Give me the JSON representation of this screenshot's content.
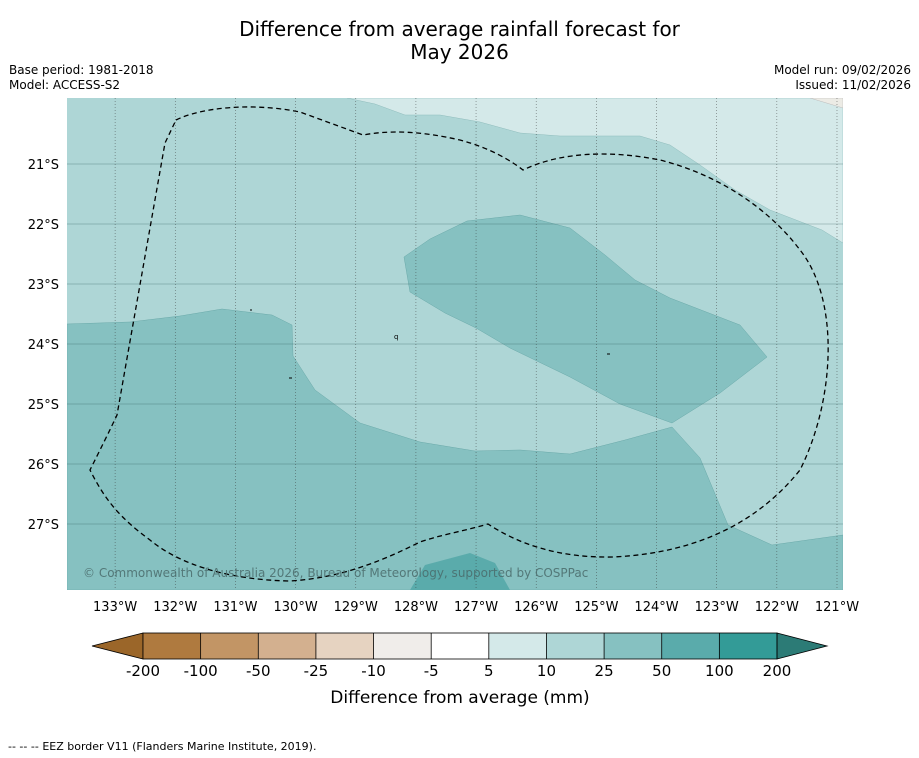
{
  "title": {
    "line1": "Difference from average rainfall forecast for",
    "line2": "May 2026"
  },
  "meta_left": {
    "base_period": "Base period: 1981-2018",
    "model": "Model: ACCESS-S2"
  },
  "meta_right": {
    "model_run": "Model run: 09/02/2026",
    "issued": "Issued: 11/02/2026"
  },
  "map": {
    "lon_ticks": [
      "133°W",
      "132°W",
      "131°W",
      "130°W",
      "129°W",
      "128°W",
      "127°W",
      "126°W",
      "125°W",
      "124°W",
      "123°W",
      "122°W",
      "121°W"
    ],
    "lat_ticks": [
      "21°S",
      "22°S",
      "23°S",
      "24°S",
      "25°S",
      "26°S",
      "27°S"
    ],
    "lon_range": [
      -133.8,
      -120.9
    ],
    "lat_range": [
      -28.1,
      -19.9
    ],
    "copyright": "© Commonwealth of Australia 2026, Bureau of Meteorology, supported by COSPPac",
    "zones": [
      {
        "category": "10 to 25",
        "color": "#aed6d6"
      },
      {
        "category": "5 to 10",
        "color": "#d4e9e9"
      },
      {
        "category": "25 to 50",
        "color": "#86c1c1"
      },
      {
        "category": "50 to 100",
        "color": "#5aabab"
      }
    ]
  },
  "colorbar": {
    "labels": [
      "-200",
      "-100",
      "-50",
      "-25",
      "-10",
      "-5",
      "5",
      "10",
      "25",
      "50",
      "100",
      "200"
    ],
    "colors": [
      "#af7a3f",
      "#c29565",
      "#d3b08f",
      "#e6d3c1",
      "#f0edea",
      "#ffffff",
      "#d4e9e9",
      "#aed6d6",
      "#86c1c1",
      "#5aabab",
      "#339b97"
    ],
    "low_extend_color": "#9b6629",
    "high_extend_color": "#2c7b76",
    "label": "Difference from average (mm)"
  },
  "footer": {
    "legend_symbol": "--  --  --",
    "legend_text": "EEZ border V11 (Flanders Marine Institute, 2019)."
  }
}
